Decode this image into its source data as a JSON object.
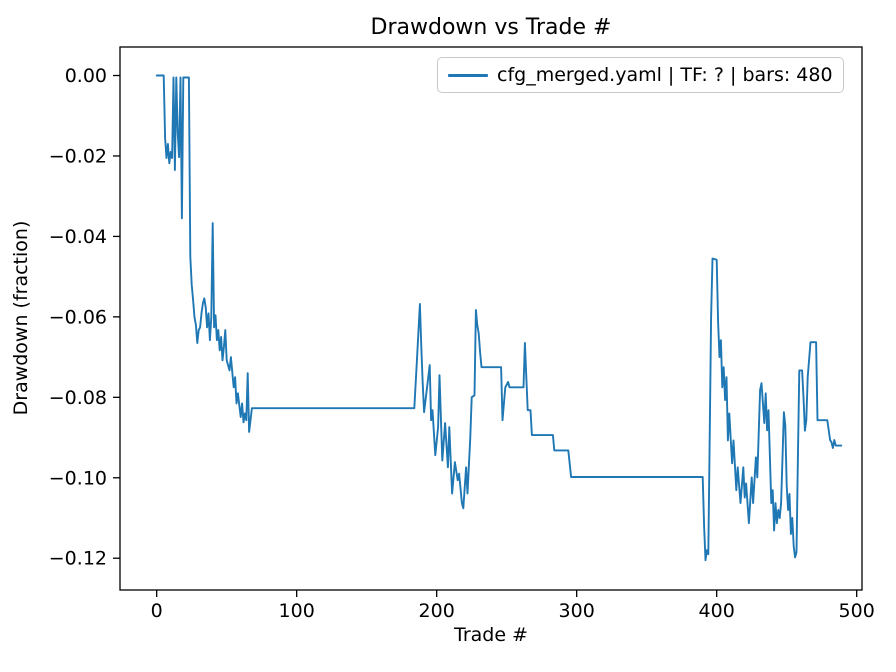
{
  "figure": {
    "title": "Drawdown vs Trade #",
    "xlabel": "Trade #",
    "ylabel": "Drawdown (fraction)",
    "legend_label": "cfg_merged.yaml | TF: ? | bars: 480",
    "line_color": "#1f77b4",
    "spine_color": "#000000",
    "background": "#ffffff"
  },
  "chart_data": {
    "type": "line",
    "title": "Drawdown vs Trade #",
    "xlabel": "Trade #",
    "ylabel": "Drawdown (fraction)",
    "grid": false,
    "legend_position": "upper right",
    "x_range": [
      -26.2,
      503.8
    ],
    "y_range": [
      -0.1279,
      0.00709
    ],
    "x_ticks": {
      "values": [
        0,
        100,
        200,
        300,
        400,
        500
      ],
      "labels": [
        "0",
        "100",
        "200",
        "300",
        "400",
        "500"
      ]
    },
    "y_ticks": {
      "values": [
        0.0,
        -0.02,
        -0.04,
        -0.06,
        -0.08,
        -0.1,
        -0.12
      ],
      "labels": [
        "0.00",
        "−0.02",
        "−0.04",
        "−0.06",
        "−0.08",
        "−0.10",
        "−0.12"
      ]
    },
    "series": [
      {
        "name": "cfg_merged.yaml | TF: ? | bars: 480",
        "points": [
          [
            0,
            0
          ],
          [
            5,
            0
          ],
          [
            6,
            -0.0155
          ],
          [
            7,
            -0.0205
          ],
          [
            8,
            -0.017
          ],
          [
            9,
            -0.0218
          ],
          [
            10,
            -0.019
          ],
          [
            11,
            -0.0205
          ],
          [
            12,
            -0.0005
          ],
          [
            13,
            -0.0235
          ],
          [
            14,
            -0.0005
          ],
          [
            15,
            -0.0143
          ],
          [
            16,
            -0.0203
          ],
          [
            17,
            -0.0005
          ],
          [
            18,
            -0.0355
          ],
          [
            19,
            -0.0005
          ],
          [
            23,
            -0.0005
          ],
          [
            24,
            -0.045
          ],
          [
            25,
            -0.052
          ],
          [
            26,
            -0.0558
          ],
          [
            27,
            -0.0601
          ],
          [
            28,
            -0.062
          ],
          [
            29,
            -0.0665
          ],
          [
            30,
            -0.0633
          ],
          [
            31,
            -0.0626
          ],
          [
            32,
            -0.0591
          ],
          [
            33,
            -0.0566
          ],
          [
            34,
            -0.0554
          ],
          [
            35,
            -0.0576
          ],
          [
            36,
            -0.0626
          ],
          [
            37,
            -0.0591
          ],
          [
            38,
            -0.0658
          ],
          [
            39,
            -0.06
          ],
          [
            40,
            -0.0367
          ],
          [
            41,
            -0.0626
          ],
          [
            42,
            -0.0596
          ],
          [
            43,
            -0.0658
          ],
          [
            44,
            -0.0633
          ],
          [
            45,
            -0.0683
          ],
          [
            46,
            -0.065
          ],
          [
            47,
            -0.0708
          ],
          [
            48,
            -0.0675
          ],
          [
            49,
            -0.0633
          ],
          [
            50,
            -0.0708
          ],
          [
            52,
            -0.0733
          ],
          [
            53,
            -0.07
          ],
          [
            55,
            -0.0775
          ],
          [
            56,
            -0.075
          ],
          [
            57,
            -0.0815
          ],
          [
            58,
            -0.079
          ],
          [
            60,
            -0.0849
          ],
          [
            61,
            -0.0815
          ],
          [
            62,
            -0.0862
          ],
          [
            63,
            -0.084
          ],
          [
            64,
            -0.0857
          ],
          [
            65,
            -0.074
          ],
          [
            66,
            -0.0886
          ],
          [
            67,
            -0.0857
          ],
          [
            68,
            -0.0827
          ],
          [
            184,
            -0.0827
          ],
          [
            186,
            -0.07
          ],
          [
            188,
            -0.0568
          ],
          [
            189,
            -0.0675
          ],
          [
            190,
            -0.0765
          ],
          [
            191,
            -0.0837
          ],
          [
            195,
            -0.072
          ],
          [
            196,
            -0.0857
          ],
          [
            197,
            -0.0832
          ],
          [
            199,
            -0.0944
          ],
          [
            201,
            -0.0874
          ],
          [
            202,
            -0.0745
          ],
          [
            204,
            -0.0957
          ],
          [
            206,
            -0.0864
          ],
          [
            208,
            -0.0974
          ],
          [
            209,
            -0.0874
          ],
          [
            211,
            -0.1039
          ],
          [
            213,
            -0.0961
          ],
          [
            215,
            -0.1006
          ],
          [
            216,
            -0.099
          ],
          [
            218,
            -0.1063
          ],
          [
            219,
            -0.1076
          ],
          [
            221,
            -0.0974
          ],
          [
            222,
            -0.1039
          ],
          [
            224,
            -0.0899
          ],
          [
            225,
            -0.08
          ],
          [
            227,
            -0.0795
          ],
          [
            228,
            -0.0583
          ],
          [
            229,
            -0.0621
          ],
          [
            230,
            -0.0641
          ],
          [
            231,
            -0.0688
          ],
          [
            232,
            -0.0725
          ],
          [
            246,
            -0.0725
          ],
          [
            247,
            -0.0857
          ],
          [
            249,
            -0.0775
          ],
          [
            251,
            -0.0762
          ],
          [
            252,
            -0.0775
          ],
          [
            262,
            -0.0775
          ],
          [
            263,
            -0.0665
          ],
          [
            265,
            -0.0832
          ],
          [
            267,
            -0.0832
          ],
          [
            268,
            -0.0894
          ],
          [
            283,
            -0.0894
          ],
          [
            284,
            -0.0932
          ],
          [
            294,
            -0.0932
          ],
          [
            296,
            -0.0998
          ],
          [
            390,
            -0.0998
          ],
          [
            391,
            -0.112
          ],
          [
            392,
            -0.1205
          ],
          [
            393,
            -0.118
          ],
          [
            394,
            -0.119
          ],
          [
            395,
            -0.09
          ],
          [
            396,
            -0.06
          ],
          [
            397,
            -0.0455
          ],
          [
            400,
            -0.0458
          ],
          [
            401,
            -0.0613
          ],
          [
            402,
            -0.07
          ],
          [
            403,
            -0.0658
          ],
          [
            404,
            -0.0775
          ],
          [
            405,
            -0.0725
          ],
          [
            406,
            -0.0807
          ],
          [
            407,
            -0.075
          ],
          [
            408,
            -0.0907
          ],
          [
            409,
            -0.084
          ],
          [
            411,
            -0.0964
          ],
          [
            412,
            -0.0907
          ],
          [
            414,
            -0.1031
          ],
          [
            415,
            -0.0974
          ],
          [
            417,
            -0.1063
          ],
          [
            419,
            -0.0974
          ],
          [
            420,
            -0.1049
          ],
          [
            421,
            -0.1014
          ],
          [
            423,
            -0.1113
          ],
          [
            425,
            -0.0999
          ],
          [
            426,
            -0.1063
          ],
          [
            428,
            -0.0949
          ],
          [
            429,
            -0.0999
          ],
          [
            431,
            -0.0782
          ],
          [
            432,
            -0.0765
          ],
          [
            434,
            -0.0864
          ],
          [
            435,
            -0.079
          ],
          [
            436,
            -0.0882
          ],
          [
            437,
            -0.0832
          ],
          [
            439,
            -0.1063
          ],
          [
            440,
            -0.1031
          ],
          [
            441,
            -0.1131
          ],
          [
            442,
            -0.1063
          ],
          [
            443,
            -0.1113
          ],
          [
            444,
            -0.108
          ],
          [
            445,
            -0.11
          ],
          [
            446,
            -0.1063
          ],
          [
            448,
            -0.0837
          ],
          [
            449,
            -0.087
          ],
          [
            450,
            -0.102
          ],
          [
            451,
            -0.108
          ],
          [
            452,
            -0.104
          ],
          [
            453,
            -0.114
          ],
          [
            454,
            -0.11
          ],
          [
            455,
            -0.117
          ],
          [
            456,
            -0.1198
          ],
          [
            457,
            -0.1185
          ],
          [
            458,
            -0.095
          ],
          [
            459,
            -0.0733
          ],
          [
            461,
            -0.0733
          ],
          [
            462,
            -0.08
          ],
          [
            463,
            -0.0883
          ],
          [
            464,
            -0.0857
          ],
          [
            465,
            -0.075
          ],
          [
            467,
            -0.0663
          ],
          [
            471,
            -0.0663
          ],
          [
            472,
            -0.0857
          ],
          [
            479,
            -0.0857
          ],
          [
            481,
            -0.0906
          ],
          [
            482,
            -0.0912
          ],
          [
            483,
            -0.0926
          ],
          [
            484,
            -0.0906
          ],
          [
            485,
            -0.092
          ],
          [
            489,
            -0.092
          ]
        ]
      }
    ]
  }
}
